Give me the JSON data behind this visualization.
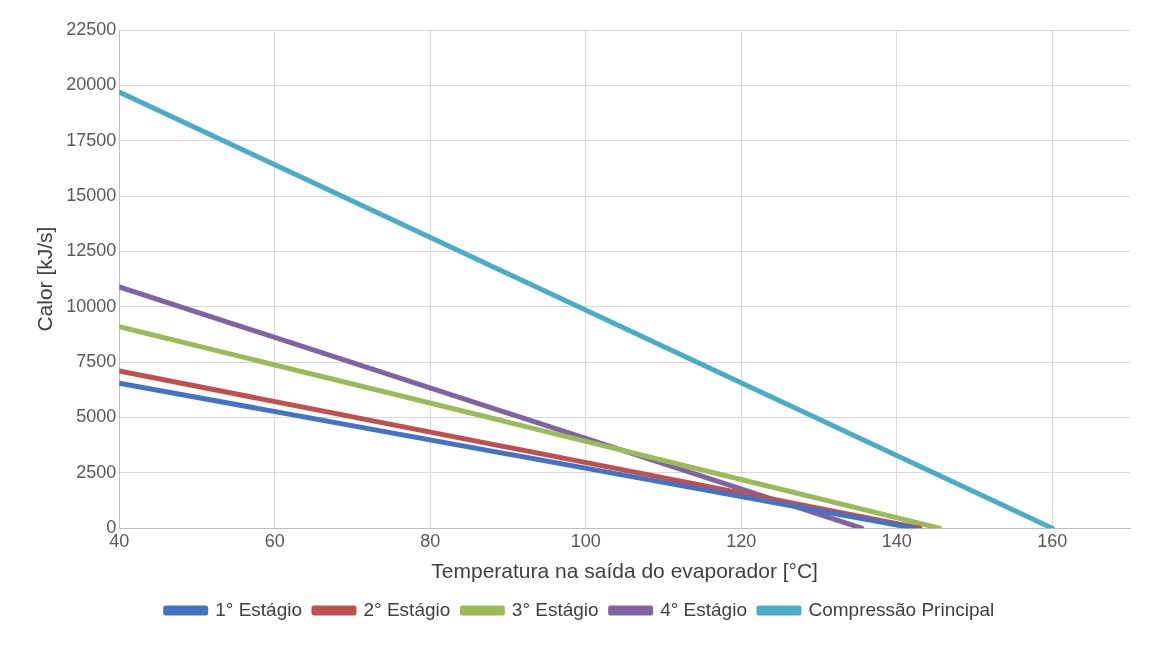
{
  "chart_data": {
    "type": "line",
    "xlabel": "Temperatura na saída do evaporador [°C]",
    "ylabel": "Calor [kJ/s]",
    "xlim": [
      40,
      170
    ],
    "xticks": [
      40,
      60,
      80,
      100,
      120,
      140,
      160
    ],
    "ylim": [
      0,
      22500
    ],
    "yticks": [
      0,
      2500,
      5000,
      7500,
      10000,
      12500,
      15000,
      17500,
      20000,
      22500
    ],
    "grid": true,
    "legend": "bottom",
    "marker": "none",
    "line_style": "solid",
    "series": [
      {
        "name": "1° Estágio",
        "color": "#4472c4",
        "x": [
          40,
          142.3
        ],
        "values": [
          6550,
          0
        ]
      },
      {
        "name": "2° Estágio",
        "color": "#c0504d",
        "x": [
          40,
          143
        ],
        "values": [
          7100,
          0
        ]
      },
      {
        "name": "3° Estágio",
        "color": "#9bbb59",
        "x": [
          40,
          145.5
        ],
        "values": [
          9100,
          0
        ]
      },
      {
        "name": "4° Estágio",
        "color": "#8064a2",
        "x": [
          40,
          135.5
        ],
        "values": [
          10900,
          0
        ]
      },
      {
        "name": "Compressão Principal",
        "color": "#4bacc6",
        "x": [
          40,
          160
        ],
        "values": [
          19700,
          0
        ]
      }
    ]
  }
}
